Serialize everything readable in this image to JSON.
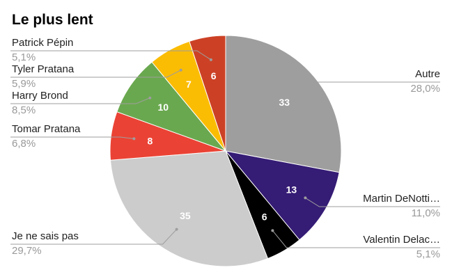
{
  "chart_data": {
    "type": "pie",
    "title": "Le plus lent",
    "slices": [
      {
        "label": "Autre",
        "value": 33,
        "percent": "28,0%",
        "color": "#9e9e9e"
      },
      {
        "label": "Martin DeNotti…",
        "value": 13,
        "percent": "11,0%",
        "color": "#351c75"
      },
      {
        "label": "Valentin Delac…",
        "value": 6,
        "percent": "5,1%",
        "color": "#000000"
      },
      {
        "label": "Je ne sais pas",
        "value": 35,
        "percent": "29,7%",
        "color": "#cccccc"
      },
      {
        "label": "Tomar Pratana",
        "value": 8,
        "percent": "6,8%",
        "color": "#ea4335"
      },
      {
        "label": "Harry Brond",
        "value": 10,
        "percent": "8,5%",
        "color": "#6aa84f"
      },
      {
        "label": "Tyler Pratana",
        "value": 7,
        "percent": "5,9%",
        "color": "#fbbc04"
      },
      {
        "label": "Patrick Pépin",
        "value": 6,
        "percent": "5,1%",
        "color": "#cc4125"
      }
    ]
  }
}
